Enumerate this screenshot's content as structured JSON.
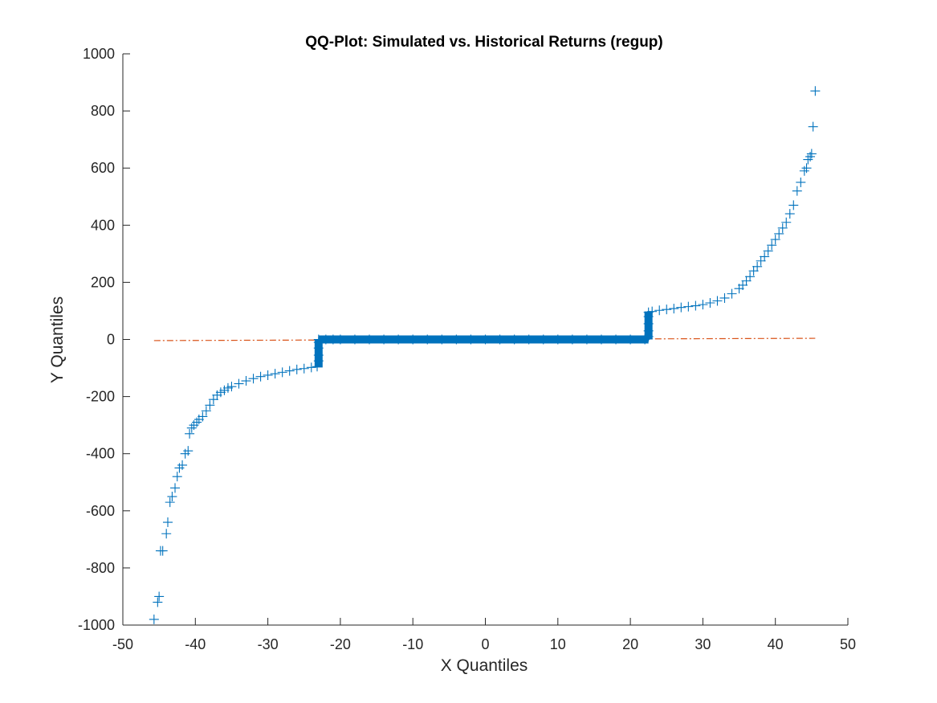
{
  "chart_data": {
    "type": "scatter",
    "title": "QQ-Plot: Simulated vs. Historical Returns (regup)",
    "xlabel": "X Quantiles",
    "ylabel": "Y Quantiles",
    "xlim": [
      -50,
      50
    ],
    "ylim": [
      -1000,
      1000
    ],
    "xticks": [
      "-50",
      "-40",
      "-30",
      "-20",
      "-10",
      "0",
      "10",
      "20",
      "30",
      "40",
      "50"
    ],
    "yticks": [
      "-1000",
      "-800",
      "-600",
      "-400",
      "-200",
      "0",
      "200",
      "400",
      "600",
      "800",
      "1000"
    ],
    "grid": false,
    "series": [
      {
        "marker": "+",
        "color": "#0072BD",
        "x": [
          -45.7,
          -45.2,
          -45.0,
          -44.8,
          -44.5,
          -44.0,
          -43.8,
          -43.5,
          -43.2,
          -42.8,
          -42.5,
          -42.2,
          -41.8,
          -41.4,
          -41.0,
          -40.8,
          -40.5,
          -40.2,
          -39.8,
          -39.5,
          -39.0,
          -38.5,
          -38.0,
          -37.5,
          -37.0,
          -36.5,
          -36.0,
          -35.5,
          -35.0,
          -34.0,
          -33.0,
          -32.0,
          -31.0,
          -30.0,
          -29.0,
          -28.0,
          -27.0,
          -26.0,
          -25.0,
          -24.0,
          -23.2,
          -23.0,
          -23.0,
          -23.0,
          -23.0,
          -23.0,
          -22.0,
          -21.0,
          -20.0,
          -18.0,
          -16.0,
          -14.0,
          -12.0,
          -10.0,
          -8.0,
          -6.0,
          -4.0,
          -2.0,
          0.0,
          2.0,
          4.0,
          6.0,
          8.0,
          10.0,
          12.0,
          14.0,
          16.0,
          18.0,
          20.0,
          22.0,
          22.5,
          22.5,
          22.5,
          22.5,
          22.5,
          23.0,
          24.0,
          25.0,
          26.0,
          27.0,
          28.0,
          29.0,
          30.0,
          31.0,
          32.0,
          33.0,
          34.0,
          35.0,
          35.5,
          36.0,
          36.5,
          37.0,
          37.5,
          38.0,
          38.5,
          39.0,
          39.5,
          40.0,
          40.5,
          41.0,
          41.5,
          42.0,
          42.5,
          43.0,
          43.5,
          44.0,
          44.3,
          44.5,
          44.8,
          45.0,
          45.2,
          45.5
        ],
        "y": [
          -980,
          -920,
          -900,
          -740,
          -740,
          -680,
          -640,
          -570,
          -550,
          -520,
          -480,
          -450,
          -440,
          -400,
          -390,
          -330,
          -310,
          -300,
          -290,
          -280,
          -270,
          -250,
          -230,
          -210,
          -195,
          -185,
          -178,
          -170,
          -165,
          -155,
          -145,
          -137,
          -130,
          -125,
          -120,
          -115,
          -110,
          -105,
          -102,
          -98,
          -95,
          -75,
          -55,
          -30,
          -10,
          0,
          0,
          0,
          0,
          0,
          0,
          0,
          0,
          0,
          0,
          0,
          0,
          0,
          0,
          0,
          0,
          0,
          0,
          0,
          0,
          0,
          0,
          0,
          0,
          0,
          10,
          30,
          55,
          80,
          95,
          98,
          102,
          105,
          108,
          112,
          115,
          118,
          122,
          128,
          135,
          145,
          160,
          178,
          190,
          205,
          220,
          240,
          255,
          275,
          290,
          310,
          330,
          350,
          370,
          390,
          410,
          440,
          470,
          520,
          550,
          590,
          600,
          630,
          640,
          650,
          745,
          870
        ]
      },
      {
        "type": "line",
        "style": "dash-dot",
        "color": "#D95319",
        "x": [
          -45.7,
          45.5
        ],
        "y": [
          -4,
          4
        ]
      }
    ]
  }
}
